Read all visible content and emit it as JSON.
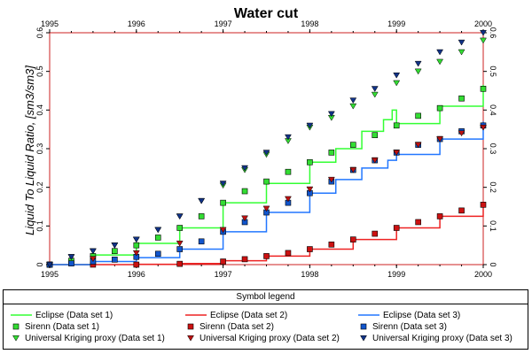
{
  "chart_data": {
    "type": "line",
    "title": "Water cut",
    "ylabel": "Liquid To Liquid Ratio, [sm3/sm3]",
    "xlim": [
      1995,
      2000
    ],
    "ylim": [
      0,
      0.6
    ],
    "x_ticks": [
      "1995",
      "1996",
      "1997",
      "1998",
      "1999",
      "2000"
    ],
    "y_ticks": [
      "0",
      "0.1",
      "0.2",
      "0.3",
      "0.4",
      "0.5",
      "0.6"
    ],
    "grid": false,
    "legend": {
      "title": "Symbol legend",
      "placement": "bottom",
      "entries": [
        {
          "label": "Eclipse (Data set 1)",
          "series": "eclipse1"
        },
        {
          "label": "Eclipse (Data set 2)",
          "series": "eclipse2"
        },
        {
          "label": "Eclipse (Data set 3)",
          "series": "eclipse3"
        },
        {
          "label": "Sirenn (Data set 1)",
          "series": "sirenn1"
        },
        {
          "label": "Sirenn (Data set 2)",
          "series": "sirenn2"
        },
        {
          "label": "Sirenn (Data set 3)",
          "series": "sirenn3"
        },
        {
          "label": "Universal Kriging proxy (Data set 1)",
          "series": "kriging1"
        },
        {
          "label": "Universal Kriging proxy (Data set 2)",
          "series": "kriging2"
        },
        {
          "label": "Universal Kriging proxy (Data set 3)",
          "series": "kriging3"
        }
      ]
    },
    "series": [
      {
        "id": "eclipse1",
        "name": "Eclipse (Data set 1)",
        "kind": "step",
        "color": "#33ff33",
        "x": [
          1995.0,
          1995.5,
          1996.0,
          1996.5,
          1997.0,
          1997.5,
          1998.0,
          1998.3,
          1998.6,
          1998.85,
          1998.95,
          1999.0,
          1999.5,
          2000.0
        ],
        "y": [
          0.0,
          0.025,
          0.055,
          0.095,
          0.16,
          0.21,
          0.265,
          0.3,
          0.345,
          0.375,
          0.4,
          0.365,
          0.41,
          0.465
        ]
      },
      {
        "id": "eclipse2",
        "name": "Eclipse (Data set 2)",
        "kind": "step",
        "color": "#ee2222",
        "x": [
          1995.0,
          1996.0,
          1996.5,
          1997.0,
          1997.5,
          1998.0,
          1998.5,
          1999.0,
          1999.5,
          2000.0
        ],
        "y": [
          0.0,
          0.001,
          0.003,
          0.01,
          0.022,
          0.04,
          0.065,
          0.095,
          0.125,
          0.155
        ]
      },
      {
        "id": "eclipse3",
        "name": "Eclipse (Data set 3)",
        "kind": "step",
        "color": "#2277ff",
        "x": [
          1995.0,
          1995.5,
          1996.0,
          1996.5,
          1997.0,
          1997.5,
          1998.0,
          1998.3,
          1998.6,
          1998.9,
          1999.0,
          1999.5,
          2000.0
        ],
        "y": [
          0.0,
          0.008,
          0.018,
          0.04,
          0.085,
          0.135,
          0.185,
          0.22,
          0.25,
          0.27,
          0.285,
          0.325,
          0.37
        ]
      },
      {
        "id": "sirenn1",
        "name": "Sirenn (Data set 1)",
        "kind": "square",
        "color": "#33dd33",
        "x": [
          1995.0,
          1995.25,
          1995.5,
          1995.75,
          1996.0,
          1996.25,
          1996.5,
          1996.75,
          1997.0,
          1997.25,
          1997.5,
          1997.75,
          1998.0,
          1998.25,
          1998.5,
          1998.75,
          1999.0,
          1999.25,
          1999.5,
          1999.75,
          2000.0
        ],
        "y": [
          0.0,
          0.01,
          0.022,
          0.035,
          0.05,
          0.07,
          0.095,
          0.125,
          0.16,
          0.19,
          0.215,
          0.24,
          0.265,
          0.29,
          0.31,
          0.335,
          0.36,
          0.385,
          0.405,
          0.43,
          0.455
        ]
      },
      {
        "id": "sirenn2",
        "name": "Sirenn (Data set 2)",
        "kind": "square",
        "color": "#cc1111",
        "x": [
          1995.0,
          1995.5,
          1996.0,
          1996.5,
          1997.0,
          1997.25,
          1997.5,
          1997.75,
          1998.0,
          1998.25,
          1998.5,
          1998.75,
          1999.0,
          1999.25,
          1999.5,
          1999.75,
          2000.0
        ],
        "y": [
          0.0,
          0.0,
          0.0,
          0.002,
          0.008,
          0.014,
          0.022,
          0.03,
          0.04,
          0.052,
          0.065,
          0.08,
          0.095,
          0.11,
          0.125,
          0.14,
          0.155
        ]
      },
      {
        "id": "sirenn3",
        "name": "Sirenn (Data set 3)",
        "kind": "square",
        "color": "#1155cc",
        "x": [
          1995.0,
          1995.25,
          1995.5,
          1995.75,
          1996.0,
          1996.25,
          1996.5,
          1996.75,
          1997.0,
          1997.25,
          1997.5,
          1997.75,
          1998.0,
          1998.25,
          1998.5,
          1998.75,
          1999.0,
          1999.25,
          1999.5,
          1999.75,
          2000.0
        ],
        "y": [
          0.0,
          0.003,
          0.008,
          0.013,
          0.02,
          0.028,
          0.04,
          0.06,
          0.085,
          0.11,
          0.135,
          0.16,
          0.185,
          0.215,
          0.245,
          0.27,
          0.29,
          0.31,
          0.325,
          0.345,
          0.36
        ]
      },
      {
        "id": "kriging1",
        "name": "Universal Kriging proxy (Data set 1)",
        "kind": "triangle",
        "color": "#33dd33",
        "x": [
          1995.0,
          1995.25,
          1995.5,
          1995.75,
          1996.0,
          1996.25,
          1996.5,
          1996.75,
          1997.0,
          1997.25,
          1997.5,
          1997.75,
          1998.0,
          1998.25,
          1998.5,
          1998.75,
          1999.0,
          1999.25,
          1999.5,
          1999.75,
          2000.0
        ],
        "y": [
          0.0,
          0.02,
          0.035,
          0.05,
          0.065,
          0.09,
          0.125,
          0.165,
          0.205,
          0.245,
          0.285,
          0.32,
          0.355,
          0.38,
          0.41,
          0.44,
          0.47,
          0.5,
          0.525,
          0.55,
          0.58
        ]
      },
      {
        "id": "kriging2",
        "name": "Universal Kriging proxy (Data set 2)",
        "kind": "triangle",
        "color": "#bb1111",
        "x": [
          1995.0,
          1995.5,
          1996.0,
          1996.5,
          1997.0,
          1997.25,
          1997.5,
          1997.75,
          1998.0,
          1998.25,
          1998.5,
          1998.75,
          1999.0,
          1999.25,
          1999.5,
          1999.75,
          2000.0
        ],
        "y": [
          0.0,
          0.015,
          0.03,
          0.055,
          0.09,
          0.12,
          0.145,
          0.17,
          0.195,
          0.22,
          0.245,
          0.27,
          0.29,
          0.31,
          0.325,
          0.34,
          0.355
        ]
      },
      {
        "id": "kriging3",
        "name": "Universal Kriging proxy (Data set 3)",
        "kind": "triangle",
        "color": "#113388",
        "x": [
          1995.0,
          1995.25,
          1995.5,
          1995.75,
          1996.0,
          1996.25,
          1996.5,
          1996.75,
          1997.0,
          1997.25,
          1997.5,
          1997.75,
          1998.0,
          1998.25,
          1998.5,
          1998.75,
          1999.0,
          1999.25,
          1999.5,
          1999.75,
          2000.0
        ],
        "y": [
          0.0,
          0.02,
          0.035,
          0.05,
          0.065,
          0.09,
          0.125,
          0.165,
          0.21,
          0.25,
          0.29,
          0.33,
          0.36,
          0.39,
          0.425,
          0.455,
          0.49,
          0.52,
          0.55,
          0.575,
          0.6
        ]
      }
    ]
  }
}
